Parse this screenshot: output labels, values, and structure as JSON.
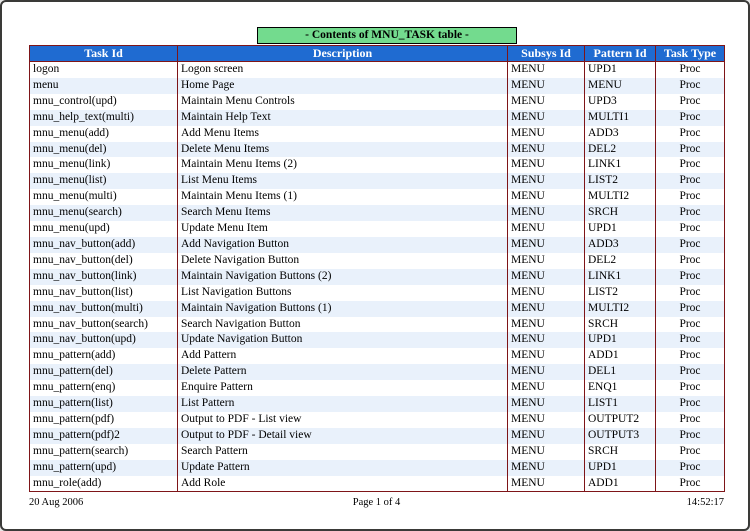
{
  "report": {
    "title": "- Contents of MNU_TASK table -",
    "footer": {
      "date": "20 Aug 2006",
      "page": "Page 1 of 4",
      "time": "14:52:17"
    }
  },
  "table": {
    "columns": [
      {
        "key": "task_id",
        "label": "Task Id"
      },
      {
        "key": "description",
        "label": "Description"
      },
      {
        "key": "subsys_id",
        "label": "Subsys Id"
      },
      {
        "key": "pattern_id",
        "label": "Pattern Id"
      },
      {
        "key": "task_type",
        "label": "Task Type"
      }
    ],
    "rows": [
      [
        "logon",
        "Logon screen",
        "MENU",
        "UPD1",
        "Proc"
      ],
      [
        "menu",
        "Home Page",
        "MENU",
        "MENU",
        "Proc"
      ],
      [
        "mnu_control(upd)",
        "Maintain Menu Controls",
        "MENU",
        "UPD3",
        "Proc"
      ],
      [
        "mnu_help_text(multi)",
        "Maintain Help Text",
        "MENU",
        "MULTI1",
        "Proc"
      ],
      [
        "mnu_menu(add)",
        "Add Menu Items",
        "MENU",
        "ADD3",
        "Proc"
      ],
      [
        "mnu_menu(del)",
        "Delete Menu Items",
        "MENU",
        "DEL2",
        "Proc"
      ],
      [
        "mnu_menu(link)",
        "Maintain Menu Items (2)",
        "MENU",
        "LINK1",
        "Proc"
      ],
      [
        "mnu_menu(list)",
        "List Menu Items",
        "MENU",
        "LIST2",
        "Proc"
      ],
      [
        "mnu_menu(multi)",
        "Maintain Menu Items (1)",
        "MENU",
        "MULTI2",
        "Proc"
      ],
      [
        "mnu_menu(search)",
        "Search Menu Items",
        "MENU",
        "SRCH",
        "Proc"
      ],
      [
        "mnu_menu(upd)",
        "Update Menu Item",
        "MENU",
        "UPD1",
        "Proc"
      ],
      [
        "mnu_nav_button(add)",
        "Add Navigation Button",
        "MENU",
        "ADD3",
        "Proc"
      ],
      [
        "mnu_nav_button(del)",
        "Delete Navigation Button",
        "MENU",
        "DEL2",
        "Proc"
      ],
      [
        "mnu_nav_button(link)",
        "Maintain Navigation Buttons (2)",
        "MENU",
        "LINK1",
        "Proc"
      ],
      [
        "mnu_nav_button(list)",
        "List Navigation Buttons",
        "MENU",
        "LIST2",
        "Proc"
      ],
      [
        "mnu_nav_button(multi)",
        "Maintain Navigation Buttons (1)",
        "MENU",
        "MULTI2",
        "Proc"
      ],
      [
        "mnu_nav_button(search)",
        "Search Navigation Button",
        "MENU",
        "SRCH",
        "Proc"
      ],
      [
        "mnu_nav_button(upd)",
        "Update Navigation Button",
        "MENU",
        "UPD1",
        "Proc"
      ],
      [
        "mnu_pattern(add)",
        "Add Pattern",
        "MENU",
        "ADD1",
        "Proc"
      ],
      [
        "mnu_pattern(del)",
        "Delete Pattern",
        "MENU",
        "DEL1",
        "Proc"
      ],
      [
        "mnu_pattern(enq)",
        "Enquire Pattern",
        "MENU",
        "ENQ1",
        "Proc"
      ],
      [
        "mnu_pattern(list)",
        "List Pattern",
        "MENU",
        "LIST1",
        "Proc"
      ],
      [
        "mnu_pattern(pdf)",
        "Output to PDF - List view",
        "MENU",
        "OUTPUT2",
        "Proc"
      ],
      [
        "mnu_pattern(pdf)2",
        "Output to PDF - Detail view",
        "MENU",
        "OUTPUT3",
        "Proc"
      ],
      [
        "mnu_pattern(search)",
        "Search Pattern",
        "MENU",
        "SRCH",
        "Proc"
      ],
      [
        "mnu_pattern(upd)",
        "Update Pattern",
        "MENU",
        "UPD1",
        "Proc"
      ],
      [
        "mnu_role(add)",
        "Add Role",
        "MENU",
        "ADD1",
        "Proc"
      ]
    ]
  },
  "colors": {
    "title_bg": "#73DB8E",
    "header_bg": "#1F6BD1",
    "grid_border": "#7E1518",
    "alt_row_bg": "#E9F1FB"
  }
}
